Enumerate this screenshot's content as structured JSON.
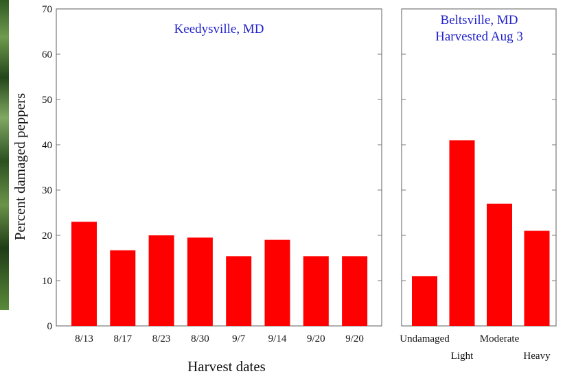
{
  "chart_data": [
    {
      "type": "bar",
      "title": "Keedysville,  MD",
      "xlabel": "Harvest dates",
      "ylabel": "Percent  damaged  peppers",
      "ylim": [
        0,
        70
      ],
      "yticks": [
        0,
        10,
        20,
        30,
        40,
        50,
        60,
        70
      ],
      "categories": [
        "8/13",
        "8/17",
        "8/23",
        "8/30",
        "9/7",
        "9/14",
        "9/20",
        "9/20"
      ],
      "values": [
        23,
        16.7,
        20,
        19.5,
        15.4,
        19,
        15.4,
        15.4
      ],
      "bar_color": "#ff0000",
      "grid": false
    },
    {
      "type": "bar",
      "title": [
        "Beltsville, MD",
        "Harvested Aug 3"
      ],
      "ylim": [
        0,
        70
      ],
      "categories": [
        "Undamaged",
        "Light",
        "Moderate",
        "Heavy"
      ],
      "values": [
        11,
        41,
        27,
        21
      ],
      "bar_color": "#ff0000",
      "grid": false
    }
  ]
}
